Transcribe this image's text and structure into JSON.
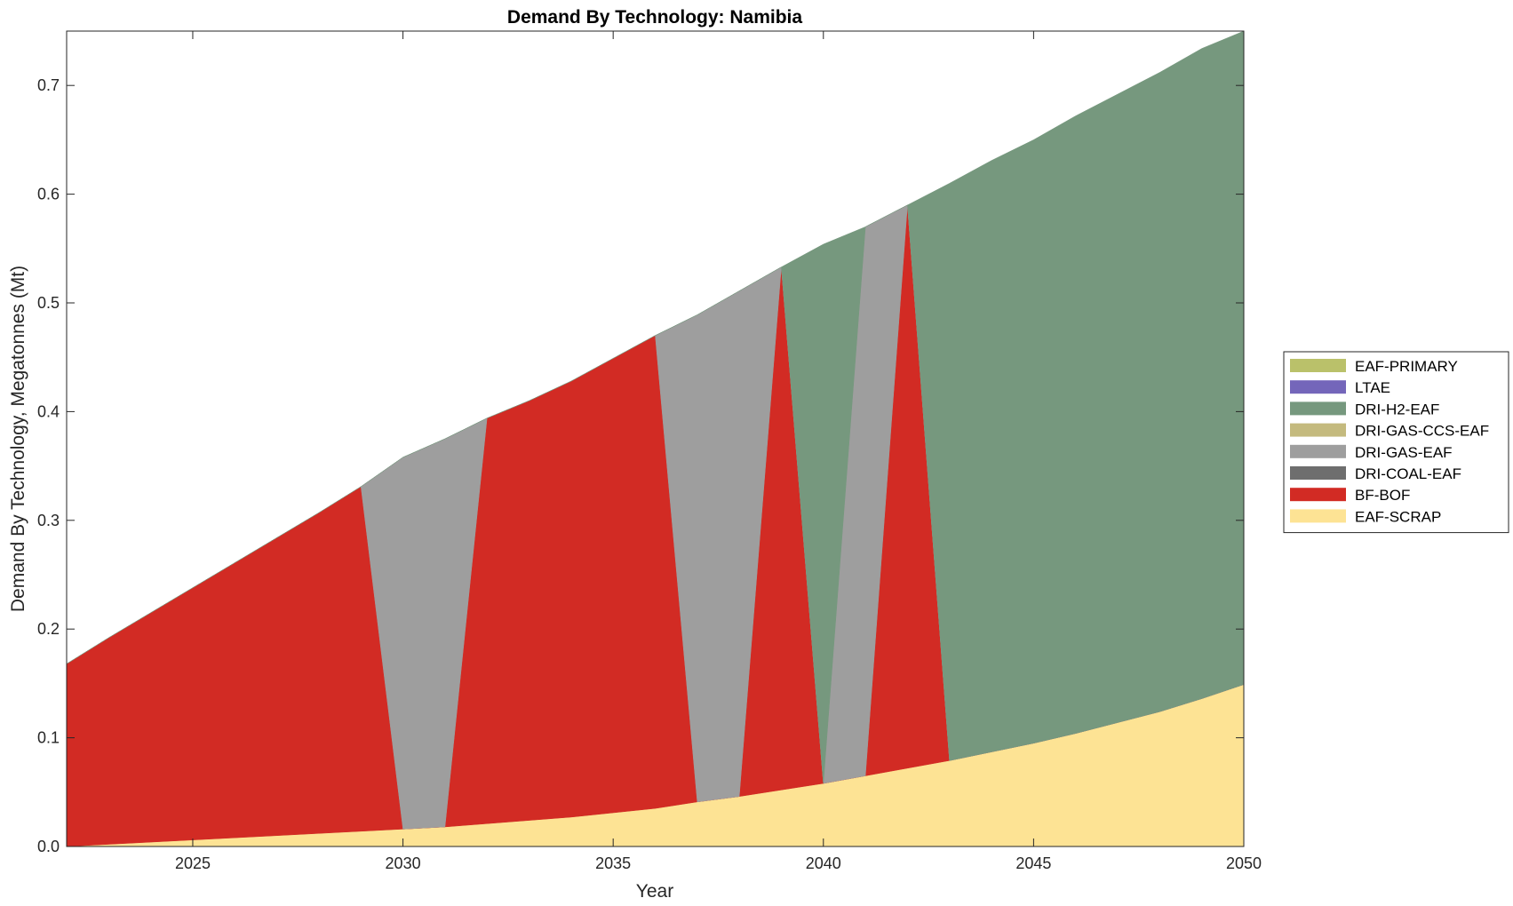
{
  "chart_data": {
    "type": "area",
    "stacked": true,
    "title": "Demand By Technology: Namibia",
    "xlabel": "Year",
    "ylabel": "Demand By Technology, Megatonnes (Mt)",
    "xlim": [
      2022,
      2050
    ],
    "ylim": [
      0,
      0.75
    ],
    "xticks": [
      2025,
      2030,
      2035,
      2040,
      2045,
      2050
    ],
    "yticks": [
      "0.0",
      "0.1",
      "0.2",
      "0.3",
      "0.4",
      "0.5",
      "0.6",
      "0.7"
    ],
    "ytick_values": [
      0,
      0.1,
      0.2,
      0.3,
      0.4,
      0.5,
      0.6,
      0.7
    ],
    "grid": false,
    "legend_position": "right",
    "x": [
      2022,
      2023,
      2024,
      2025,
      2026,
      2027,
      2028,
      2029,
      2030,
      2031,
      2032,
      2033,
      2034,
      2035,
      2036,
      2037,
      2038,
      2039,
      2040,
      2041,
      2042,
      2043,
      2044,
      2045,
      2046,
      2047,
      2048,
      2049,
      2050
    ],
    "series": [
      {
        "name": "EAF-SCRAP",
        "color": "#FDE394",
        "values": [
          0.0,
          0.002,
          0.004,
          0.006,
          0.008,
          0.01,
          0.012,
          0.014,
          0.016,
          0.018,
          0.021,
          0.024,
          0.027,
          0.031,
          0.035,
          0.041,
          0.046,
          0.052,
          0.058,
          0.065,
          0.072,
          0.079,
          0.087,
          0.095,
          0.104,
          0.114,
          0.124,
          0.136,
          0.149
        ]
      },
      {
        "name": "BF-BOF",
        "color": "#D22B24",
        "values": [
          0.168,
          0.19,
          0.211,
          0.232,
          0.253,
          0.274,
          0.295,
          0.317,
          0.0,
          0.0,
          0.373,
          0.386,
          0.401,
          0.418,
          0.435,
          0.0,
          0.0,
          0.481,
          0.0,
          0.0,
          0.518,
          0.0,
          0.0,
          0.0,
          0.0,
          0.0,
          0.0,
          0.0,
          0.0
        ]
      },
      {
        "name": "DRI-COAL-EAF",
        "color": "#6E6E6E",
        "values": [
          0,
          0,
          0,
          0,
          0,
          0,
          0,
          0,
          0,
          0,
          0,
          0,
          0,
          0,
          0,
          0,
          0,
          0,
          0,
          0,
          0,
          0,
          0,
          0,
          0,
          0,
          0,
          0,
          0
        ]
      },
      {
        "name": "DRI-GAS-EAF",
        "color": "#9E9E9E",
        "values": [
          0,
          0,
          0,
          0,
          0,
          0,
          0,
          0,
          0.342,
          0.357,
          0.0,
          0.0,
          0.0,
          0.0,
          0.0,
          0.448,
          0.465,
          0.0,
          0.0,
          0.505,
          0.0,
          0.0,
          0.0,
          0.0,
          0.0,
          0.0,
          0.0,
          0.0,
          0.0
        ]
      },
      {
        "name": "DRI-GAS-CCS-EAF",
        "color": "#C4BA7E",
        "values": [
          0,
          0,
          0,
          0,
          0,
          0,
          0,
          0,
          0,
          0,
          0,
          0,
          0,
          0,
          0,
          0,
          0,
          0,
          0,
          0,
          0,
          0,
          0,
          0,
          0,
          0,
          0,
          0,
          0
        ]
      },
      {
        "name": "DRI-H2-EAF",
        "color": "#76987E",
        "values": [
          0,
          0,
          0,
          0,
          0,
          0,
          0,
          0,
          0,
          0,
          0,
          0,
          0,
          0,
          0,
          0,
          0,
          0,
          0.496,
          0.0,
          0.0,
          0.531,
          0.544,
          0.555,
          0.568,
          0.578,
          0.588,
          0.598,
          0.601
        ]
      },
      {
        "name": "LTAE",
        "color": "#7466BA",
        "values": [
          0,
          0,
          0,
          0,
          0,
          0,
          0,
          0,
          0,
          0,
          0,
          0,
          0,
          0,
          0,
          0,
          0,
          0,
          0,
          0,
          0,
          0,
          0,
          0,
          0,
          0,
          0,
          0,
          0
        ]
      },
      {
        "name": "EAF-PRIMARY",
        "color": "#BAC16A",
        "values": [
          0,
          0,
          0,
          0,
          0,
          0,
          0,
          0,
          0,
          0,
          0,
          0,
          0,
          0,
          0,
          0,
          0,
          0,
          0,
          0,
          0,
          0,
          0,
          0,
          0,
          0,
          0,
          0,
          0
        ]
      }
    ],
    "legend_order": [
      "EAF-PRIMARY",
      "LTAE",
      "DRI-H2-EAF",
      "DRI-GAS-CCS-EAF",
      "DRI-GAS-EAF",
      "DRI-COAL-EAF",
      "BF-BOF",
      "EAF-SCRAP"
    ]
  }
}
